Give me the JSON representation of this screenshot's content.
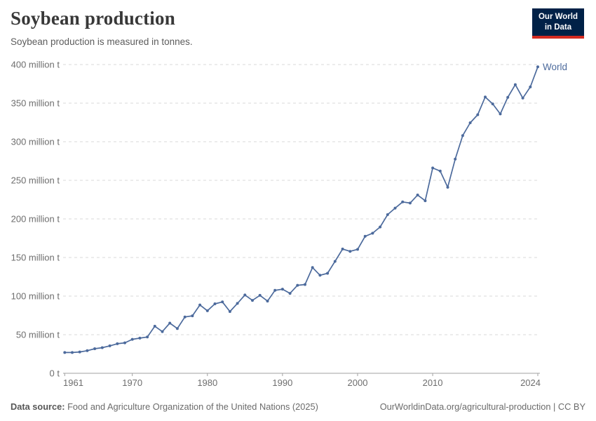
{
  "header": {
    "title": "Soybean production",
    "subtitle": "Soybean production is measured in tonnes."
  },
  "logo": {
    "line1": "Our World",
    "line2": "in Data",
    "bg_color": "#002147",
    "stripe_color": "#D42B21"
  },
  "footer": {
    "source_label": "Data source:",
    "source_text": "Food and Agriculture Organization of the United Nations (2025)",
    "right_text": "OurWorldinData.org/agricultural-production | CC BY"
  },
  "chart_data": {
    "type": "line",
    "title": "Soybean production",
    "subtitle": "Soybean production is measured in tonnes.",
    "unit": "tonnes",
    "xlim": [
      1961,
      2024
    ],
    "ylim": [
      0,
      400
    ],
    "grid": "dashed-horizontal",
    "legend_position": "end-of-line-label",
    "x_ticks": [
      1961,
      1970,
      1980,
      1990,
      2000,
      2010,
      2024
    ],
    "y_ticks": [
      {
        "value": 0,
        "label": "0 t"
      },
      {
        "value": 50,
        "label": "50 million t"
      },
      {
        "value": 100,
        "label": "100 million t"
      },
      {
        "value": 150,
        "label": "150 million t"
      },
      {
        "value": 200,
        "label": "200 million t"
      },
      {
        "value": 250,
        "label": "250 million t"
      },
      {
        "value": 300,
        "label": "300 million t"
      },
      {
        "value": 350,
        "label": "350 million t"
      },
      {
        "value": 400,
        "label": "400 million t"
      }
    ],
    "years": [
      1961,
      1962,
      1963,
      1964,
      1965,
      1966,
      1967,
      1968,
      1969,
      1970,
      1971,
      1972,
      1973,
      1974,
      1975,
      1976,
      1977,
      1978,
      1979,
      1980,
      1981,
      1982,
      1983,
      1984,
      1985,
      1986,
      1987,
      1988,
      1989,
      1990,
      1991,
      1992,
      1993,
      1994,
      1995,
      1996,
      1997,
      1998,
      1999,
      2000,
      2001,
      2002,
      2003,
      2004,
      2005,
      2006,
      2007,
      2008,
      2009,
      2010,
      2011,
      2012,
      2013,
      2014,
      2015,
      2016,
      2017,
      2018,
      2019,
      2020,
      2021,
      2022,
      2023,
      2024
    ],
    "series": [
      {
        "name": "World",
        "color": "#4C6A9C",
        "unit_suffix": "million t",
        "values": [
          26.9,
          26.9,
          27.6,
          29.3,
          31.8,
          33.2,
          35.5,
          38.3,
          39.5,
          44.0,
          45.5,
          47.0,
          61.0,
          54.0,
          65.0,
          58.0,
          73.0,
          74.5,
          88.5,
          81.0,
          90.0,
          92.5,
          80.0,
          90.5,
          101.5,
          94.5,
          101.0,
          93.5,
          107.5,
          109.0,
          103.5,
          114.0,
          115.0,
          137.0,
          127.0,
          129.5,
          145.0,
          161.0,
          158.0,
          160.5,
          177.5,
          181.5,
          189.5,
          205.5,
          214.0,
          222.0,
          220.5,
          231.0,
          223.5,
          266.0,
          262.0,
          241.0,
          277.5,
          308.0,
          324.5,
          335.0,
          358.0,
          349.0,
          336.0,
          357.5,
          374.0,
          356.5,
          371.0,
          397.0
        ]
      }
    ]
  }
}
